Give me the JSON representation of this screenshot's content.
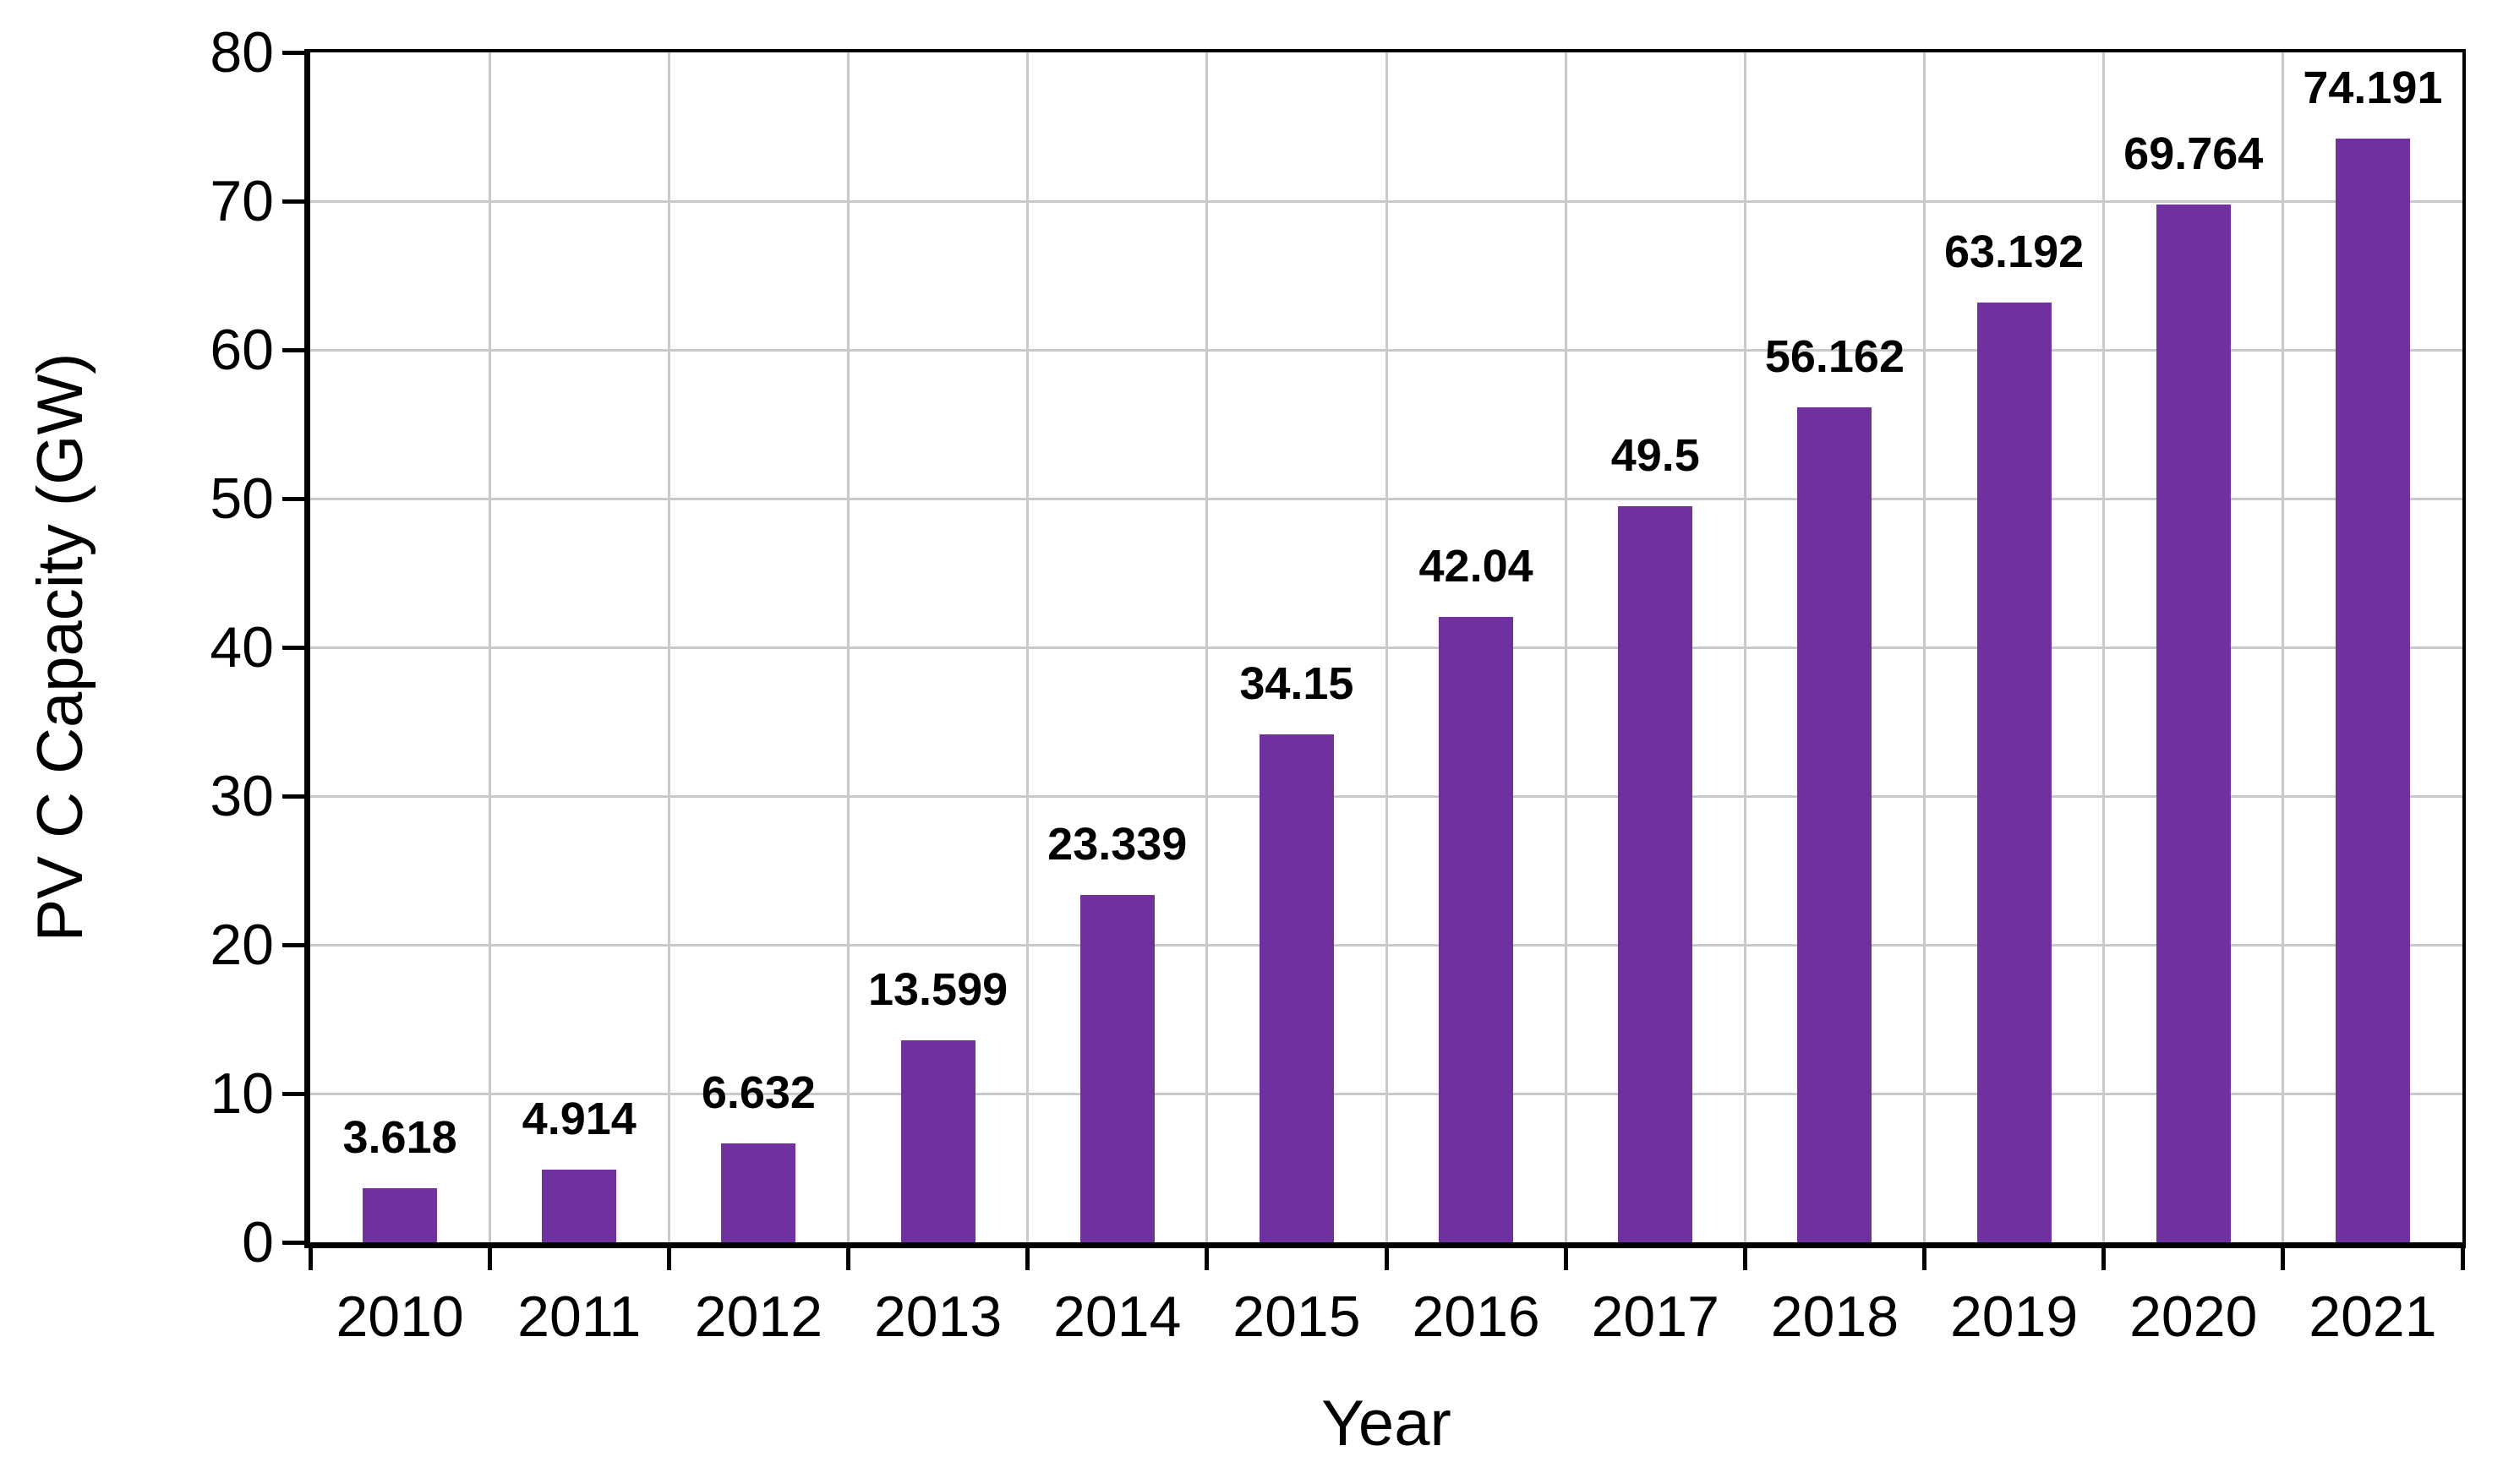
{
  "chart_data": {
    "type": "bar",
    "title": "",
    "xlabel": "Year",
    "ylabel": "PV C Capacity (GW)",
    "categories": [
      "2010",
      "2011",
      "2012",
      "2013",
      "2014",
      "2015",
      "2016",
      "2017",
      "2018",
      "2019",
      "2020",
      "2021"
    ],
    "values": [
      3.618,
      4.914,
      6.632,
      13.599,
      23.339,
      34.15,
      42.04,
      49.5,
      56.162,
      63.192,
      69.764,
      74.191
    ],
    "value_labels": [
      "3.618",
      "4.914",
      "6.632",
      "13.599",
      "23.339",
      "34.15",
      "42.04",
      "49.5",
      "56.162",
      "63.192",
      "69.764",
      "74.191"
    ],
    "ylim": [
      0,
      80
    ],
    "ytick_step": 10,
    "ytick_labels": [
      "0",
      "10",
      "20",
      "30",
      "40",
      "50",
      "60",
      "70",
      "80"
    ],
    "grid": true,
    "legend_position": "none",
    "bar_color": "#7030A0",
    "gridline_color": "#C9C9C9",
    "axis_color": "#000000",
    "text_color": "#000000"
  }
}
